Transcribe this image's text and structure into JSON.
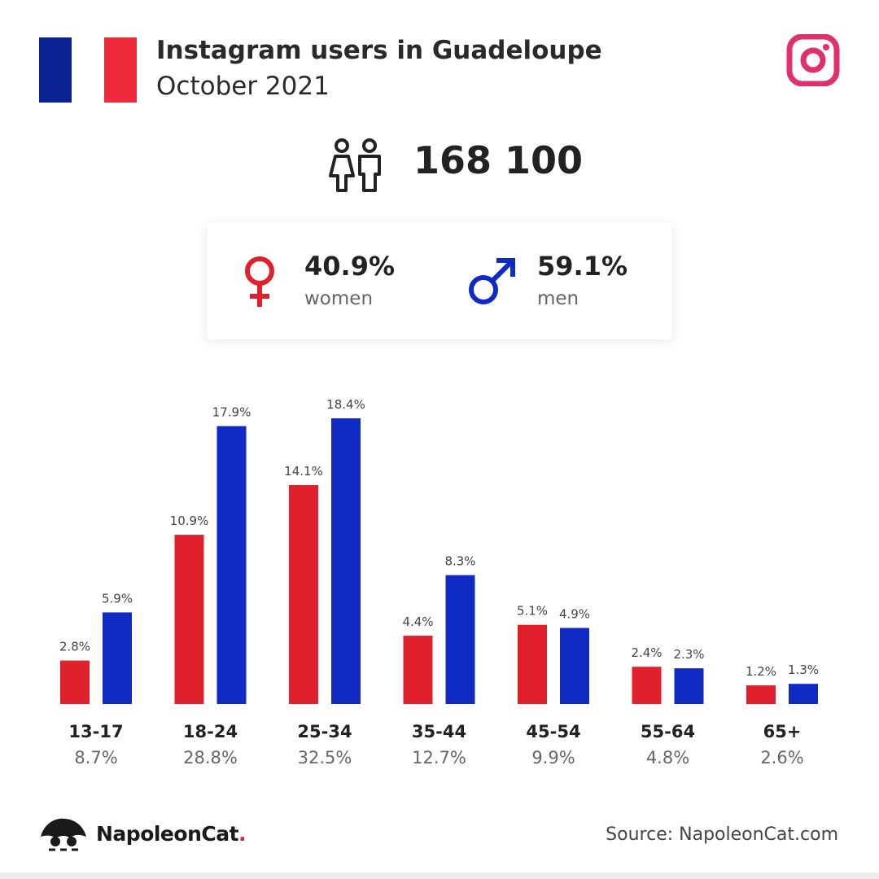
{
  "header": {
    "title": "Instagram users in Guadeloupe",
    "subtitle": "October 2021",
    "flag_colors": [
      "#0a2293",
      "#ffffff",
      "#ef2b3b"
    ],
    "icon": "instagram-icon"
  },
  "total": {
    "value": "168 100",
    "icon": "people-icon"
  },
  "gender": {
    "women": {
      "pct": "40.9%",
      "label": "women",
      "icon": "female-symbol-icon",
      "color": "#e0202b"
    },
    "men": {
      "pct": "59.1%",
      "label": "men",
      "icon": "male-symbol-icon",
      "color": "#102bc4"
    }
  },
  "chart_data": {
    "type": "bar",
    "categories": [
      "13-17",
      "18-24",
      "25-34",
      "35-44",
      "45-54",
      "55-64",
      "65+"
    ],
    "category_totals": [
      "8.7%",
      "28.8%",
      "32.5%",
      "12.7%",
      "9.9%",
      "4.8%",
      "2.6%"
    ],
    "series": [
      {
        "values": [
          2.8,
          10.9,
          14.1,
          4.4,
          5.1,
          2.4,
          1.2
        ],
        "labels": [
          "2.8%",
          "10.9%",
          "14.1%",
          "4.4%",
          "5.1%",
          "2.4%",
          "1.2%"
        ],
        "color": "#e0202b"
      },
      {
        "values": [
          5.9,
          17.9,
          18.4,
          8.3,
          4.9,
          2.3,
          1.3
        ],
        "labels": [
          "5.9%",
          "17.9%",
          "18.4%",
          "8.3%",
          "4.9%",
          "2.3%",
          "1.3%"
        ],
        "color": "#102bc4"
      }
    ],
    "ylim": [
      0,
      18.4
    ],
    "grid": false
  },
  "footer": {
    "brand": "NapoleonCat",
    "brand_dot": ".",
    "source": "Source: NapoleonCat.com"
  }
}
